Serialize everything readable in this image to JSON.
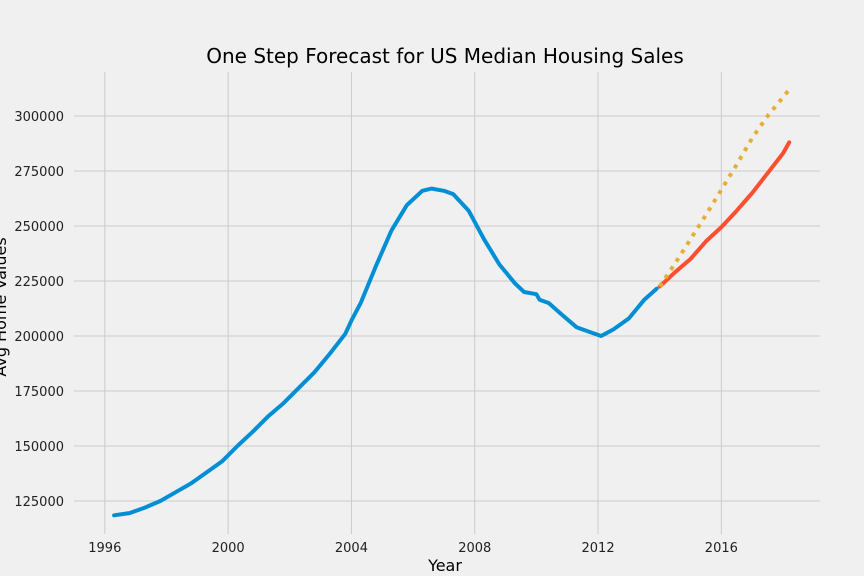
{
  "chart_data": {
    "type": "line",
    "title": "One Step Forecast for US Median Housing Sales",
    "xlabel": "Year",
    "ylabel": "Avg Home Values",
    "xlim": [
      1995.0,
      2019.2
    ],
    "ylim": [
      110000,
      320000
    ],
    "x_ticks": [
      1996,
      2000,
      2004,
      2008,
      2012,
      2016
    ],
    "y_ticks": [
      125000,
      150000,
      175000,
      200000,
      225000,
      250000,
      275000,
      300000
    ],
    "grid": true,
    "colors": {
      "background": "#f0f0f0",
      "grid": "#cbcbcb",
      "observed": "#008fd5",
      "forecast": "#fc4f30",
      "projection": "#e5ae38"
    },
    "series": [
      {
        "style": "solid",
        "color": "#008fd5",
        "points": [
          [
            1996.3,
            118500
          ],
          [
            1996.8,
            119500
          ],
          [
            1997.3,
            122000
          ],
          [
            1997.8,
            125000
          ],
          [
            1998.3,
            129000
          ],
          [
            1998.8,
            133000
          ],
          [
            1999.3,
            138000
          ],
          [
            1999.8,
            143000
          ],
          [
            2000.3,
            150000
          ],
          [
            2000.8,
            156500
          ],
          [
            2001.3,
            163500
          ],
          [
            2001.8,
            169500
          ],
          [
            2002.3,
            176500
          ],
          [
            2002.8,
            183500
          ],
          [
            2003.3,
            192000
          ],
          [
            2003.8,
            201000
          ],
          [
            2004.0,
            207000
          ],
          [
            2004.3,
            215000
          ],
          [
            2004.8,
            232000
          ],
          [
            2005.3,
            248000
          ],
          [
            2005.8,
            259500
          ],
          [
            2006.3,
            266000
          ],
          [
            2006.6,
            267000
          ],
          [
            2007.0,
            266000
          ],
          [
            2007.3,
            264500
          ],
          [
            2007.8,
            257000
          ],
          [
            2008.3,
            244000
          ],
          [
            2008.8,
            232500
          ],
          [
            2009.3,
            224000
          ],
          [
            2009.6,
            220000
          ],
          [
            2010.0,
            219000
          ],
          [
            2010.1,
            216500
          ],
          [
            2010.4,
            215000
          ],
          [
            2010.8,
            210000
          ],
          [
            2011.3,
            204000
          ],
          [
            2011.8,
            201500
          ],
          [
            2012.1,
            200000
          ],
          [
            2012.5,
            203000
          ],
          [
            2013.0,
            208000
          ],
          [
            2013.5,
            216500
          ],
          [
            2013.9,
            221500
          ]
        ]
      },
      {
        "style": "solid",
        "color": "#fc4f30",
        "points": [
          [
            2014.0,
            222500
          ],
          [
            2014.5,
            229000
          ],
          [
            2015.0,
            235000
          ],
          [
            2015.5,
            243000
          ],
          [
            2016.0,
            249500
          ],
          [
            2016.5,
            257000
          ],
          [
            2017.0,
            265000
          ],
          [
            2017.5,
            274000
          ],
          [
            2018.0,
            283000
          ],
          [
            2018.2,
            288000
          ]
        ]
      },
      {
        "style": "dotted",
        "color": "#e5ae38",
        "points": [
          [
            2014.0,
            222500
          ],
          [
            2014.5,
            233000
          ],
          [
            2015.0,
            244000
          ],
          [
            2015.5,
            255000
          ],
          [
            2016.0,
            266500
          ],
          [
            2016.5,
            278000
          ],
          [
            2017.0,
            290000
          ],
          [
            2017.5,
            300000
          ],
          [
            2018.2,
            312000
          ]
        ]
      }
    ]
  }
}
